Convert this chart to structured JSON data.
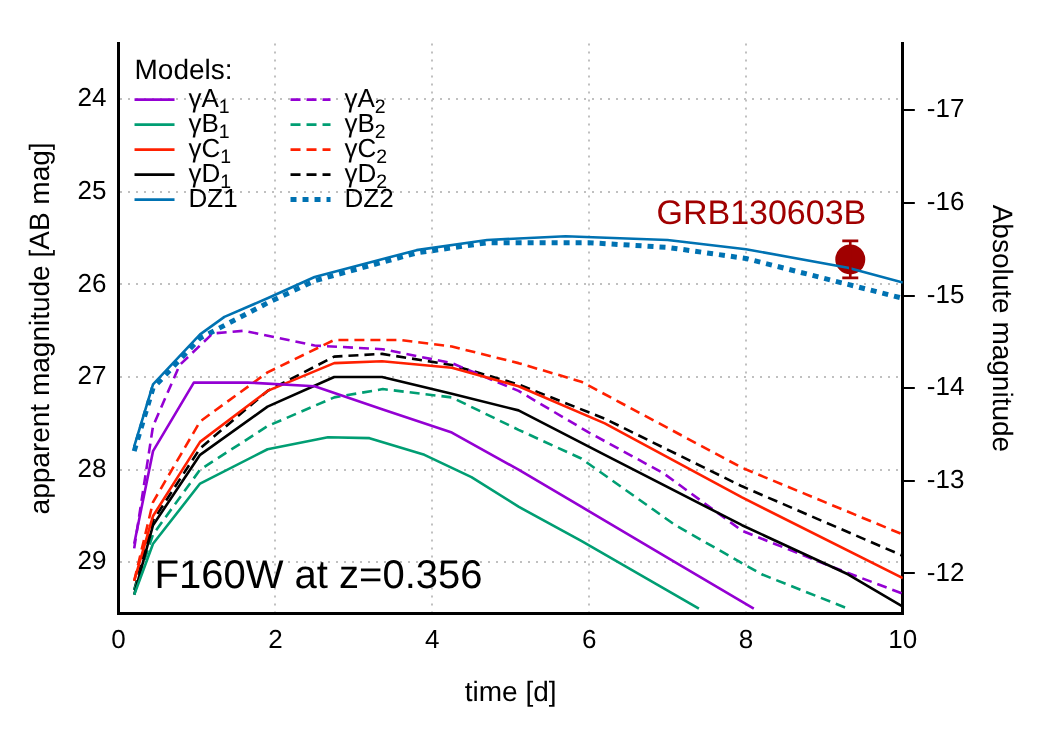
{
  "chart_data": {
    "type": "line",
    "xlabel": "time [d]",
    "ylabel": "apparent magnitude [AB mag]",
    "y2label": "Absolute magnitude",
    "legend_title": "Models:",
    "legend": "top left",
    "grid": true,
    "xlim": [
      0,
      10
    ],
    "xticks": [
      0,
      2,
      4,
      6,
      8,
      10
    ],
    "ylim": [
      29.55,
      23.4
    ],
    "yticks": [
      24,
      25,
      26,
      27,
      28,
      29
    ],
    "y2lim": [
      -11.57,
      -17.72
    ],
    "y2ticks": [
      -17,
      -16,
      -15,
      -14,
      -13,
      -12
    ],
    "annotations": [
      "F160W at z=0.356"
    ],
    "series": [
      {
        "name": "γA$_{1}$",
        "color": "#9400d3",
        "x": [
          0.2,
          0.44,
          0.96,
          1.65,
          2.5,
          3.37,
          4.25,
          5.1,
          5.9,
          7.1,
          8.1
        ],
        "values": [
          28.8,
          27.8,
          27.06,
          27.06,
          27.1,
          27.35,
          27.6,
          28.0,
          28.4,
          29.0,
          29.5
        ]
      },
      {
        "name": "γB$_{1}$",
        "color": "#009e73",
        "x": [
          0.2,
          0.44,
          1.04,
          1.9,
          2.67,
          3.2,
          3.9,
          4.5,
          5.1,
          5.9,
          7.4
        ],
        "values": [
          29.35,
          28.8,
          28.15,
          27.78,
          27.65,
          27.66,
          27.84,
          28.08,
          28.4,
          28.77,
          29.5
        ]
      },
      {
        "name": "γC$_{1}$",
        "color": "#ff2000",
        "x": [
          0.2,
          0.44,
          1.04,
          1.9,
          2.75,
          3.36,
          4.25,
          5.1,
          6.2,
          7.95,
          10
        ],
        "values": [
          29.2,
          28.5,
          27.7,
          27.15,
          26.85,
          26.83,
          26.9,
          27.1,
          27.5,
          28.3,
          29.17
        ]
      },
      {
        "name": "γD$_{1}$",
        "color": "#000000",
        "x": [
          0.2,
          0.44,
          1.04,
          1.9,
          2.75,
          3.36,
          4.25,
          5.1,
          6.2,
          7.95,
          9.3,
          10
        ],
        "values": [
          29.35,
          28.6,
          27.84,
          27.32,
          27.0,
          27.0,
          27.18,
          27.36,
          27.84,
          28.6,
          29.13,
          29.48
        ]
      },
      {
        "name": "DZ1",
        "color": "#0072b2",
        "x": [
          0.2,
          0.44,
          1.04,
          1.35,
          1.9,
          2.5,
          3.8,
          4.7,
          5.7,
          7,
          8,
          9.3,
          10
        ],
        "values": [
          27.75,
          27.08,
          26.54,
          26.35,
          26.15,
          25.92,
          25.63,
          25.52,
          25.48,
          25.52,
          25.62,
          25.82,
          25.98
        ]
      },
      {
        "name": "γA$_{2}$",
        "color": "#9400d3",
        "line_style": "dashed",
        "x": [
          0.2,
          0.44,
          0.78,
          1.2,
          1.6,
          2.5,
          3.37,
          4.25,
          5.1,
          6,
          6.95,
          7.95,
          9.1,
          10
        ],
        "values": [
          28.85,
          27.53,
          26.87,
          26.53,
          26.5,
          26.66,
          26.7,
          26.85,
          27.15,
          27.6,
          28.04,
          28.66,
          29.05,
          29.34
        ]
      },
      {
        "name": "γB$_{2}$",
        "color": "#009e73",
        "line_style": "dashed",
        "x": [
          0.2,
          0.44,
          1.04,
          1.9,
          2.75,
          3.37,
          4.25,
          5.1,
          5.9,
          7.1,
          8.2,
          9.3
        ],
        "values": [
          29.3,
          28.7,
          28.0,
          27.53,
          27.22,
          27.13,
          27.22,
          27.57,
          27.88,
          28.6,
          29.13,
          29.5
        ]
      },
      {
        "name": "γC$_{2}$",
        "color": "#ff2000",
        "line_style": "dashed",
        "x": [
          0.2,
          0.44,
          1.04,
          1.9,
          2.75,
          3.6,
          4.25,
          5.1,
          5.9,
          7.95,
          10
        ],
        "values": [
          29.2,
          28.35,
          27.48,
          26.95,
          26.6,
          26.6,
          26.67,
          26.85,
          27.05,
          27.98,
          28.7
        ]
      },
      {
        "name": "γD$_{2}$",
        "color": "#000000",
        "line_style": "dashed",
        "x": [
          0.2,
          0.44,
          1.04,
          1.9,
          2.75,
          3.36,
          4.25,
          5.1,
          6.2,
          7.95,
          10
        ],
        "values": [
          29.3,
          28.55,
          27.77,
          27.15,
          26.78,
          26.75,
          26.87,
          27.08,
          27.45,
          28.18,
          28.93
        ]
      },
      {
        "name": "DZ2",
        "color": "#0072b2",
        "line_style": "dotted",
        "x": [
          0.2,
          0.44,
          1.04,
          1.9,
          2.5,
          3.8,
          4.7,
          6,
          7,
          8,
          9.3,
          10
        ],
        "values": [
          27.8,
          27.12,
          26.58,
          26.2,
          25.96,
          25.66,
          25.55,
          25.55,
          25.6,
          25.72,
          26.0,
          26.15
        ]
      },
      {
        "name": "GRB130603B",
        "type": "scatter",
        "marker": "circle",
        "color": "#a00000",
        "x": [
          9.33
        ],
        "values": [
          25.73
        ],
        "errors": [
          0.2
        ]
      }
    ]
  }
}
